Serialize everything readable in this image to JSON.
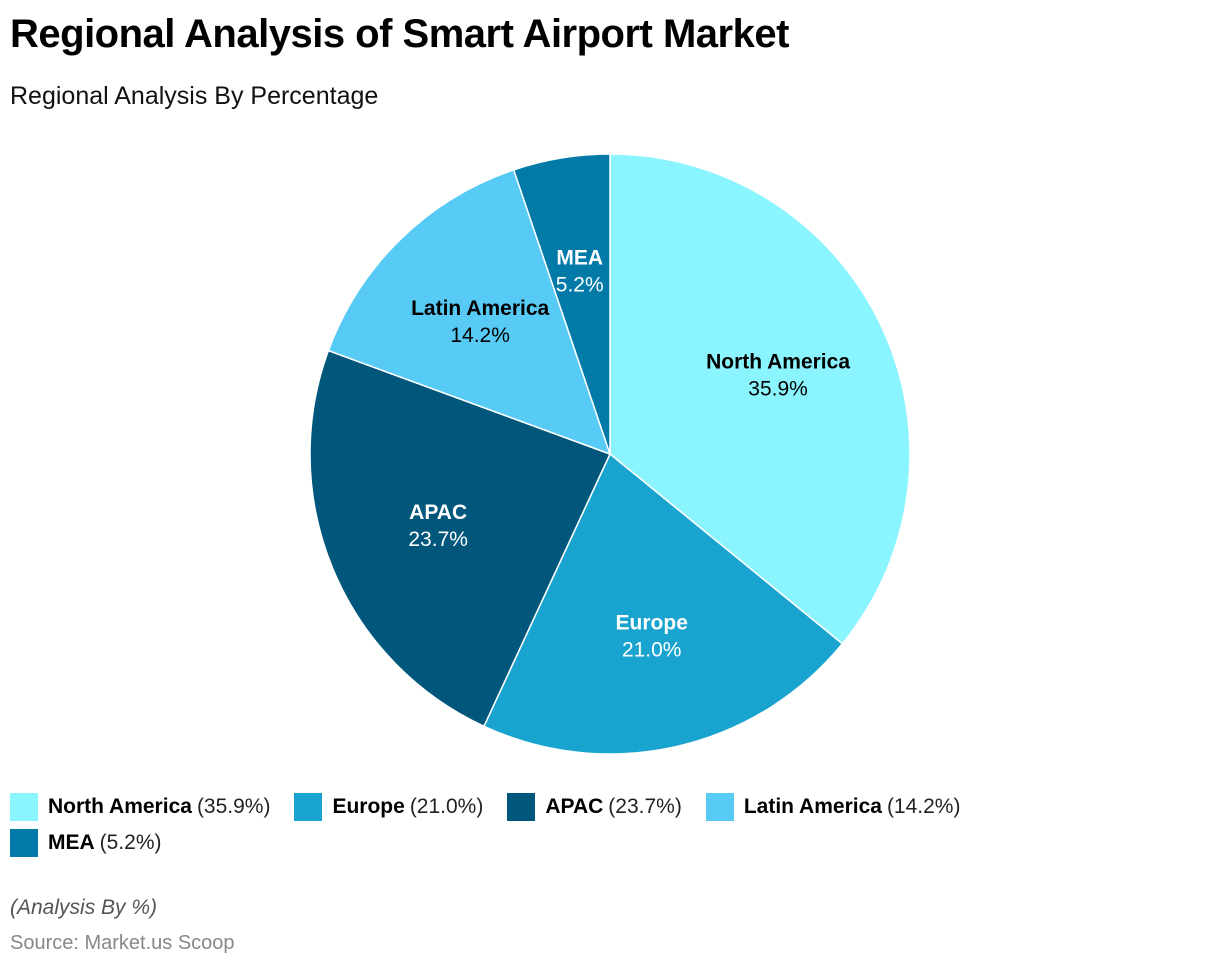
{
  "chart_data": {
    "type": "pie",
    "title": "Regional Analysis of Smart Airport Market",
    "subtitle": "Regional Analysis By Percentage",
    "slices": [
      {
        "name": "North America",
        "value": 35.9,
        "label": "35.9%",
        "legend_value": "(35.9%)",
        "color": "#8AF4FF",
        "text_color": "#000000"
      },
      {
        "name": "Europe",
        "value": 21.0,
        "label": "21.0%",
        "legend_value": "(21.0%)",
        "color": "#19A3CF",
        "text_color": "#ffffff"
      },
      {
        "name": "APAC",
        "value": 23.7,
        "label": "23.7%",
        "legend_value": "(23.7%)",
        "color": "#01567B",
        "text_color": "#ffffff"
      },
      {
        "name": "Latin America",
        "value": 14.2,
        "label": "14.2%",
        "legend_value": "(14.2%)",
        "color": "#58CAF6",
        "text_color": "#000000"
      },
      {
        "name": "MEA",
        "value": 5.2,
        "label": "5.2%",
        "legend_value": "(5.2%)",
        "color": "#017AA8",
        "text_color": "#ffffff"
      }
    ],
    "legend_position": "bottom-left",
    "note": "(Analysis By %)",
    "source": "Source: Market.us Scoop"
  }
}
